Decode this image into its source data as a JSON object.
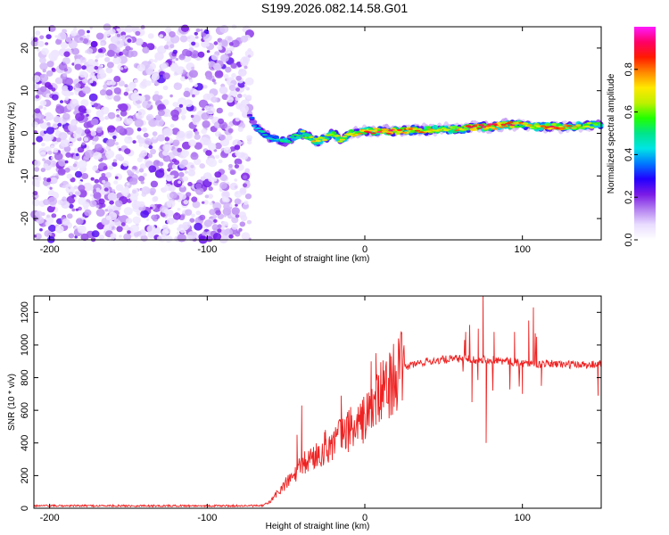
{
  "title": "S199.2026.082.14.58.G01",
  "chart_data": [
    {
      "type": "heatmap",
      "xlabel": "Height of straight line (km)",
      "ylabel": "Frequency (Hz)",
      "xlim": [
        -210,
        150
      ],
      "ylim": [
        -25,
        25
      ],
      "x_ticks": [
        -200,
        -100,
        0,
        100
      ],
      "x_tick_labels": [
        "-200",
        "-100",
        "0",
        "100"
      ],
      "y_ticks": [
        -20,
        -10,
        0,
        10,
        20
      ],
      "y_tick_labels": [
        "-20",
        "-10",
        "0",
        "10",
        "20"
      ],
      "noise_region_x": [
        -210,
        -73
      ],
      "signal_track": {
        "description_points_x": [
          -73,
          -70,
          -65,
          -60,
          -55,
          -50,
          -45,
          -40,
          -35,
          -30,
          -25,
          -20,
          -15,
          -10,
          -5,
          0,
          10,
          20,
          30,
          40,
          50,
          60,
          70,
          80,
          90,
          100,
          110,
          120,
          130,
          140,
          150
        ],
        "frequency_hz": [
          4,
          2,
          0,
          -1,
          -1.5,
          -2,
          -1,
          0,
          -1,
          -2,
          -1,
          0,
          -1.5,
          0,
          0,
          0.5,
          0.5,
          0.5,
          0.8,
          0.8,
          1,
          1,
          1.5,
          1.5,
          2,
          2,
          1.5,
          1.5,
          1.5,
          1.8,
          2
        ],
        "peak_amplitude": [
          0.3,
          0.4,
          0.5,
          0.45,
          0.5,
          0.6,
          0.55,
          0.65,
          0.7,
          0.75,
          0.7,
          0.75,
          0.7,
          0.8,
          0.85,
          0.85,
          0.95,
          0.95,
          0.85,
          0.8,
          0.8,
          0.8,
          0.9,
          0.92,
          0.95,
          0.8,
          0.75,
          0.9,
          0.8,
          0.7,
          0.6
        ]
      },
      "colorbar": {
        "label": "Normalized spectral amplitude",
        "range": [
          0,
          1
        ],
        "ticks": [
          0.0,
          0.2,
          0.4,
          0.6,
          0.8
        ],
        "tick_labels": [
          "0.0",
          "0.2",
          "0.4",
          "0.6",
          "0.8"
        ],
        "colors": [
          "#ffffff",
          "#e9ddff",
          "#b480f0",
          "#7a1ae6",
          "#2200ff",
          "#0077ff",
          "#00e5e5",
          "#00e58a",
          "#22ff00",
          "#bff000",
          "#ffe800",
          "#ff8800",
          "#ff1a00",
          "#ff0066",
          "#ff1aff"
        ]
      }
    },
    {
      "type": "line",
      "xlabel": "Height of straight line (km)",
      "ylabel": "SNR (10 * v/v)",
      "xlim": [
        -210,
        150
      ],
      "ylim": [
        0,
        1300
      ],
      "x_ticks": [
        -200,
        -100,
        0,
        100
      ],
      "x_tick_labels": [
        "-200",
        "-100",
        "0",
        "100"
      ],
      "y_ticks": [
        0,
        200,
        400,
        600,
        800,
        1000,
        1200
      ],
      "y_tick_labels": [
        "0",
        "200",
        "400",
        "600",
        "800",
        "1000",
        "1200"
      ],
      "color": "#ee2222",
      "envelope": {
        "x": [
          -210,
          -65,
          -60,
          -55,
          -50,
          -45,
          -40,
          -35,
          -30,
          -25,
          -20,
          -15,
          -10,
          -5,
          0,
          5,
          10,
          15,
          20,
          25,
          30,
          40,
          50,
          60,
          70,
          80,
          90,
          100,
          110,
          120,
          130,
          140,
          150
        ],
        "y": [
          15,
          15,
          40,
          100,
          150,
          200,
          260,
          300,
          330,
          370,
          400,
          450,
          480,
          500,
          550,
          620,
          700,
          760,
          820,
          860,
          880,
          900,
          910,
          915,
          915,
          910,
          900,
          890,
          885,
          885,
          880,
          880,
          885
        ]
      },
      "spikes": [
        {
          "x": -43,
          "y": 450
        },
        {
          "x": -40,
          "y": 630
        },
        {
          "x": -25,
          "y": 480
        },
        {
          "x": -15,
          "y": 690
        },
        {
          "x": -9,
          "y": 620
        },
        {
          "x": 4,
          "y": 900
        },
        {
          "x": 7,
          "y": 950
        },
        {
          "x": 12,
          "y": 800
        },
        {
          "x": 64,
          "y": 1080
        },
        {
          "x": 68,
          "y": 650
        },
        {
          "x": 72,
          "y": 1100
        },
        {
          "x": 75,
          "y": 1340
        },
        {
          "x": 77,
          "y": 400
        },
        {
          "x": 82,
          "y": 1080
        },
        {
          "x": 95,
          "y": 1080
        },
        {
          "x": 100,
          "y": 700
        },
        {
          "x": 104,
          "y": 1150
        },
        {
          "x": 107,
          "y": 1230
        },
        {
          "x": 109,
          "y": 1050
        },
        {
          "x": 112,
          "y": 750
        },
        {
          "x": 148,
          "y": 690
        }
      ]
    }
  ]
}
